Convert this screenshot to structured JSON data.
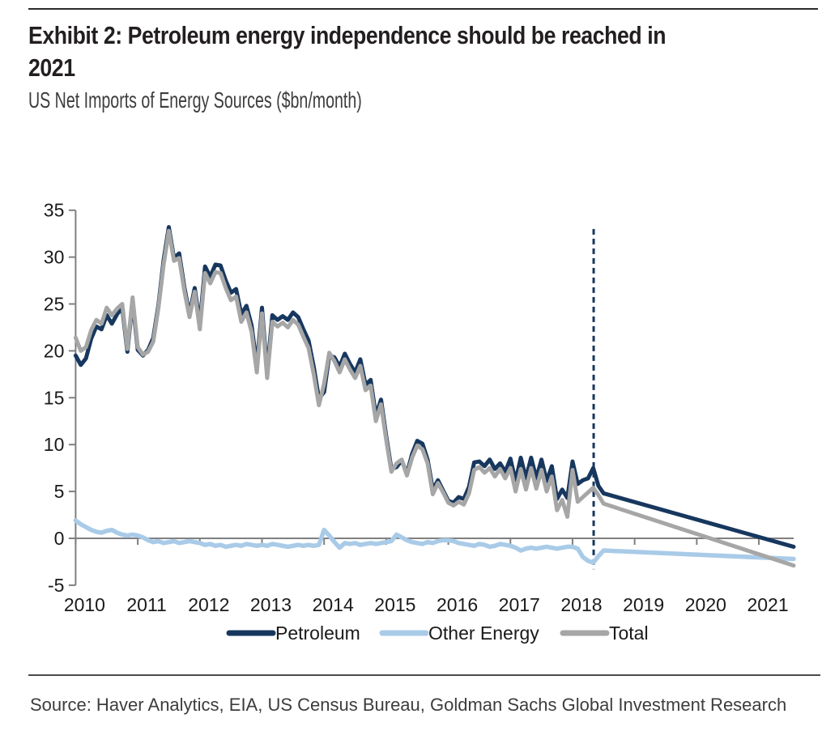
{
  "header": {
    "title_lines": [
      "Exhibit 2: Petroleum energy independence should be reached in",
      "2021"
    ],
    "subtitle": "US Net Imports of Energy Sources ($bn/month)"
  },
  "footer": {
    "source": "Source: Haver Analytics, EIA, US Census Bureau, Goldman Sachs Global Investment Research"
  },
  "chart_data": {
    "type": "line",
    "title": "US Net Imports of Energy Sources ($bn/month)",
    "ylim": [
      -5,
      35
    ],
    "xlim": [
      2010,
      2021.56
    ],
    "yticks": [
      -5,
      0,
      5,
      10,
      15,
      20,
      25,
      30,
      35
    ],
    "xticks": [
      2010,
      2011,
      2012,
      2013,
      2014,
      2015,
      2016,
      2017,
      2018,
      2019,
      2020,
      2021
    ],
    "grid": "off",
    "legend_position": "bottom",
    "axis_color": "#808080",
    "tick_label_color": "#1a1a1a",
    "forecast_divider": {
      "x": 2018.34,
      "y_top": 33.0,
      "y_bottom": -3.3,
      "color": "#17375E",
      "style": "dashed"
    },
    "series": [
      {
        "name": "Petroleum",
        "color": "#17375E",
        "stroke_width": 5,
        "z": 2,
        "monthly_start": 2010.0,
        "values": [
          19.5,
          18.5,
          19.2,
          21.3,
          22.6,
          22.3,
          23.8,
          22.9,
          23.9,
          24.6,
          19.9,
          25.3,
          20.1,
          19.5,
          20.1,
          21.4,
          24.9,
          29.7,
          33.2,
          29.9,
          30.4,
          26.8,
          23.9,
          26.7,
          22.9,
          29.0,
          27.9,
          29.2,
          29.1,
          27.5,
          26.2,
          26.6,
          23.9,
          24.8,
          22.7,
          18.4,
          24.6,
          17.7,
          23.8,
          23.3,
          23.7,
          23.3,
          24.1,
          23.6,
          22.3,
          21.1,
          18.3,
          14.9,
          15.6,
          19.5,
          19.3,
          18.3,
          19.7,
          18.6,
          17.7,
          19.1,
          16.4,
          16.9,
          13.1,
          14.8,
          10.9,
          7.4,
          7.6,
          8.3,
          6.9,
          9.0,
          10.4,
          10.1,
          8.4,
          5.2,
          6.2,
          5.1,
          4.0,
          3.8,
          4.4,
          4.2,
          5.5,
          8.1,
          8.2,
          7.7,
          8.4,
          7.4,
          8.0,
          7.1,
          8.5,
          6.1,
          8.6,
          6.4,
          8.6,
          6.4,
          8.4,
          6.1,
          7.7,
          4.2,
          5.2,
          4.3,
          8.2,
          5.8,
          6.2,
          6.4,
          7.5,
          5.6,
          4.8
        ],
        "forecast": [
          [
            2018.5,
            4.8
          ],
          [
            2021.56,
            -0.9
          ]
        ]
      },
      {
        "name": "Other Energy",
        "color": "#A9CBE8",
        "stroke_width": 5.5,
        "z": 1,
        "monthly_start": 2010.0,
        "values": [
          1.9,
          1.5,
          1.2,
          0.9,
          0.7,
          0.6,
          0.8,
          0.9,
          0.6,
          0.4,
          0.3,
          0.4,
          0.3,
          0.1,
          -0.2,
          -0.4,
          -0.3,
          -0.5,
          -0.4,
          -0.3,
          -0.5,
          -0.4,
          -0.3,
          -0.4,
          -0.5,
          -0.7,
          -0.6,
          -0.8,
          -0.7,
          -0.9,
          -0.8,
          -0.7,
          -0.8,
          -0.6,
          -0.7,
          -0.8,
          -0.7,
          -0.8,
          -0.6,
          -0.7,
          -0.8,
          -0.9,
          -0.8,
          -0.7,
          -0.8,
          -0.7,
          -0.8,
          -0.7,
          0.9,
          0.3,
          -0.4,
          -1.0,
          -0.5,
          -0.6,
          -0.5,
          -0.7,
          -0.6,
          -0.5,
          -0.6,
          -0.5,
          -0.4,
          -0.3,
          0.4,
          0.1,
          -0.2,
          -0.4,
          -0.5,
          -0.6,
          -0.4,
          -0.5,
          -0.3,
          -0.2,
          -0.2,
          -0.3,
          -0.5,
          -0.6,
          -0.7,
          -0.8,
          -0.6,
          -0.7,
          -0.9,
          -0.8,
          -0.6,
          -0.7,
          -0.8,
          -1.0,
          -1.3,
          -1.1,
          -1.0,
          -1.1,
          -1.0,
          -0.9,
          -1.0,
          -1.1,
          -1.0,
          -0.9,
          -0.9,
          -1.1,
          -2.0,
          -2.4,
          -2.6,
          -1.9,
          -1.3
        ],
        "forecast": [
          [
            2018.5,
            -1.3
          ],
          [
            2021.56,
            -2.2
          ]
        ]
      },
      {
        "name": "Total",
        "color": "#A6A6A6",
        "stroke_width": 5,
        "z": 3,
        "monthly_start": 2010.0,
        "values": [
          21.4,
          20.0,
          20.4,
          22.2,
          23.3,
          22.9,
          24.6,
          23.8,
          24.5,
          25.0,
          20.2,
          25.7,
          20.4,
          19.6,
          19.9,
          21.0,
          24.6,
          29.2,
          32.8,
          29.6,
          29.9,
          26.4,
          23.6,
          26.3,
          22.3,
          28.3,
          27.2,
          28.4,
          28.3,
          26.7,
          25.4,
          25.8,
          23.1,
          24.1,
          22.0,
          17.7,
          24.0,
          17.1,
          23.1,
          22.6,
          23.0,
          22.5,
          23.3,
          22.8,
          21.5,
          20.3,
          17.5,
          14.2,
          16.5,
          19.8,
          18.9,
          17.7,
          19.1,
          18.0,
          17.1,
          18.4,
          15.8,
          16.3,
          12.5,
          14.3,
          10.5,
          7.1,
          8.0,
          8.4,
          6.7,
          8.6,
          9.9,
          9.5,
          8.0,
          4.7,
          5.9,
          4.9,
          3.8,
          3.5,
          3.9,
          3.6,
          4.8,
          7.3,
          7.6,
          7.0,
          7.5,
          6.6,
          7.4,
          6.4,
          7.5,
          5.0,
          7.4,
          5.2,
          7.5,
          5.3,
          7.3,
          5.0,
          6.6,
          3.0,
          4.1,
          2.3,
          7.3,
          3.9,
          4.4,
          4.9,
          5.4,
          4.6,
          3.7
        ],
        "forecast": [
          [
            2018.5,
            3.7
          ],
          [
            2021.56,
            -2.9
          ]
        ]
      }
    ]
  }
}
